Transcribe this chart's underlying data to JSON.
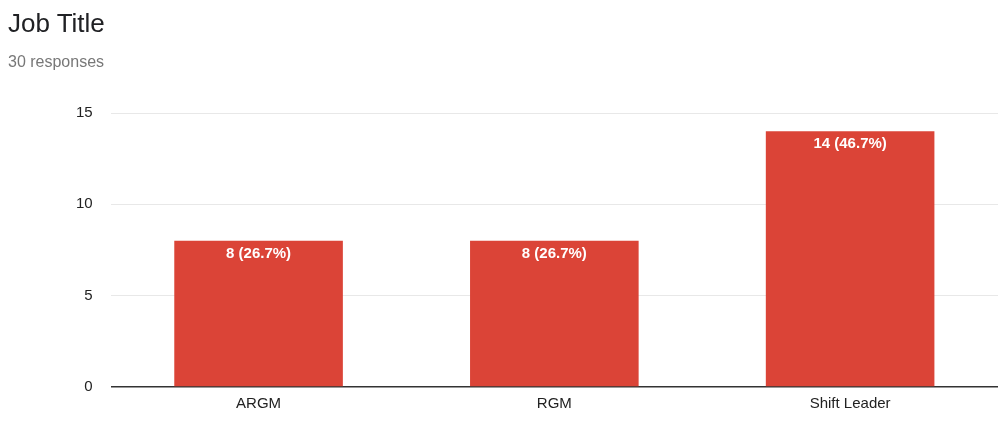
{
  "chart_data": {
    "type": "bar",
    "title": "Job Title",
    "subtitle": "30 responses",
    "categories": [
      "ARGM",
      "RGM",
      "Shift Leader"
    ],
    "values": [
      8,
      8,
      14
    ],
    "value_labels": [
      "8 (26.7%)",
      "8 (26.7%)",
      "14 (46.7%)"
    ],
    "color": "#db4437",
    "ylim": [
      0,
      15
    ],
    "yticks": [
      0,
      5,
      10,
      15
    ],
    "grid": "y",
    "legend": false
  }
}
